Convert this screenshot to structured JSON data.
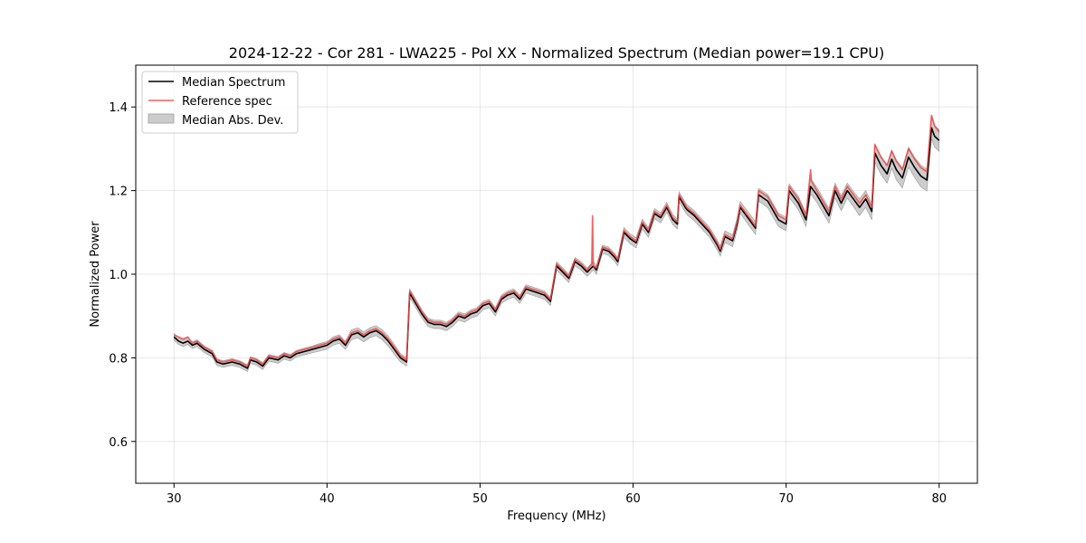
{
  "chart_data": {
    "type": "line",
    "title": "2024-12-22 - Cor 281 - LWA225 - Pol XX - Normalized Spectrum (Median power=19.1 CPU)",
    "xlabel": "Frequency (MHz)",
    "ylabel": "Normalized Power",
    "xlim": [
      27.5,
      82.5
    ],
    "ylim": [
      0.5,
      1.5
    ],
    "xticks": [
      30,
      40,
      50,
      60,
      70,
      80
    ],
    "yticks": [
      0.6,
      0.8,
      1.0,
      1.2,
      1.4
    ],
    "xtick_labels": [
      "30",
      "40",
      "50",
      "60",
      "70",
      "80"
    ],
    "ytick_labels": [
      "0.6",
      "0.8",
      "1.0",
      "1.2",
      "1.4"
    ],
    "grid": true,
    "legend_position": "top-left",
    "legend": [
      "Median Spectrum",
      "Reference spec",
      "Median Abs. Dev."
    ],
    "colors": {
      "median": "#000000",
      "reference": "#ee4444",
      "mad": "#bbbbbb"
    },
    "series": [
      {
        "name": "Median Spectrum",
        "x": [
          30.0,
          30.3,
          30.6,
          30.9,
          31.2,
          31.5,
          32.0,
          32.5,
          32.8,
          33.2,
          33.8,
          34.3,
          34.8,
          35.0,
          35.4,
          35.8,
          36.2,
          36.8,
          37.2,
          37.6,
          38.0,
          38.5,
          39.0,
          39.5,
          40.0,
          40.4,
          40.8,
          41.2,
          41.6,
          42.0,
          42.4,
          42.8,
          43.2,
          43.6,
          44.0,
          44.4,
          44.8,
          45.2,
          45.4,
          45.8,
          46.2,
          46.6,
          47.0,
          47.4,
          47.8,
          48.2,
          48.6,
          49.0,
          49.4,
          49.8,
          50.2,
          50.6,
          51.0,
          51.4,
          51.8,
          52.2,
          52.6,
          53.0,
          53.4,
          53.8,
          54.2,
          54.6,
          55.0,
          55.4,
          55.8,
          56.2,
          56.6,
          57.0,
          57.4,
          57.6,
          58.0,
          58.4,
          58.8,
          59.0,
          59.4,
          59.8,
          60.2,
          60.6,
          61.0,
          61.4,
          61.8,
          62.2,
          62.6,
          62.9,
          63.0,
          63.5,
          64.0,
          64.5,
          65.0,
          65.5,
          65.7,
          66.0,
          66.5,
          66.8,
          67.0,
          67.5,
          68.0,
          68.2,
          68.8,
          69.5,
          70.0,
          70.2,
          70.8,
          71.3,
          71.6,
          72.0,
          72.8,
          73.2,
          73.6,
          74.0,
          74.4,
          74.8,
          75.2,
          75.6,
          75.8,
          76.2,
          76.6,
          76.9,
          77.2,
          77.6,
          78.0,
          78.4,
          78.8,
          79.2,
          79.5,
          79.7,
          80.0
        ],
        "values": [
          0.85,
          0.84,
          0.835,
          0.84,
          0.83,
          0.835,
          0.82,
          0.81,
          0.79,
          0.785,
          0.79,
          0.785,
          0.775,
          0.795,
          0.79,
          0.78,
          0.8,
          0.795,
          0.805,
          0.8,
          0.81,
          0.815,
          0.82,
          0.825,
          0.83,
          0.84,
          0.845,
          0.83,
          0.855,
          0.86,
          0.85,
          0.86,
          0.865,
          0.855,
          0.84,
          0.82,
          0.8,
          0.79,
          0.955,
          0.93,
          0.905,
          0.885,
          0.88,
          0.88,
          0.875,
          0.885,
          0.9,
          0.895,
          0.905,
          0.91,
          0.925,
          0.93,
          0.91,
          0.94,
          0.95,
          0.955,
          0.94,
          0.965,
          0.96,
          0.955,
          0.95,
          0.935,
          1.02,
          1.005,
          0.99,
          1.03,
          1.02,
          1.005,
          1.02,
          1.01,
          1.06,
          1.055,
          1.04,
          1.03,
          1.1,
          1.085,
          1.075,
          1.12,
          1.1,
          1.145,
          1.135,
          1.16,
          1.13,
          1.12,
          1.185,
          1.155,
          1.14,
          1.12,
          1.1,
          1.07,
          1.055,
          1.09,
          1.08,
          1.12,
          1.16,
          1.135,
          1.11,
          1.19,
          1.175,
          1.13,
          1.12,
          1.2,
          1.17,
          1.13,
          1.21,
          1.19,
          1.14,
          1.2,
          1.17,
          1.2,
          1.18,
          1.16,
          1.18,
          1.15,
          1.29,
          1.26,
          1.24,
          1.275,
          1.25,
          1.23,
          1.28,
          1.255,
          1.235,
          1.225,
          1.35,
          1.33,
          1.32
        ]
      },
      {
        "name": "Reference spec",
        "x": [
          30.0,
          30.3,
          30.6,
          30.9,
          31.2,
          31.5,
          32.0,
          32.5,
          32.8,
          33.2,
          33.8,
          34.3,
          34.8,
          35.0,
          35.4,
          35.8,
          36.2,
          36.8,
          37.2,
          37.6,
          38.0,
          38.5,
          39.0,
          39.5,
          40.0,
          40.4,
          40.8,
          41.2,
          41.6,
          42.0,
          42.4,
          42.8,
          43.2,
          43.6,
          44.0,
          44.4,
          44.8,
          45.2,
          45.4,
          45.8,
          46.2,
          46.6,
          47.0,
          47.4,
          47.8,
          48.2,
          48.6,
          49.0,
          49.4,
          49.8,
          50.2,
          50.6,
          51.0,
          51.4,
          51.8,
          52.2,
          52.6,
          53.0,
          53.4,
          53.8,
          54.2,
          54.6,
          55.0,
          55.4,
          55.8,
          56.2,
          56.6,
          57.0,
          57.3,
          57.35,
          57.4,
          57.6,
          58.0,
          58.4,
          58.8,
          59.0,
          59.4,
          59.8,
          60.2,
          60.6,
          61.0,
          61.4,
          61.8,
          62.2,
          62.6,
          62.9,
          63.0,
          63.5,
          64.0,
          64.5,
          65.0,
          65.5,
          65.7,
          66.0,
          66.5,
          66.8,
          67.0,
          67.5,
          68.0,
          68.2,
          68.8,
          69.5,
          70.0,
          70.2,
          70.8,
          71.3,
          71.6,
          71.65,
          71.7,
          72.0,
          72.8,
          73.2,
          73.6,
          74.0,
          74.4,
          74.8,
          75.2,
          75.6,
          75.8,
          76.2,
          76.6,
          76.9,
          77.2,
          77.6,
          78.0,
          78.4,
          78.8,
          79.2,
          79.5,
          79.7,
          80.0
        ],
        "values": [
          0.855,
          0.85,
          0.845,
          0.85,
          0.835,
          0.84,
          0.825,
          0.815,
          0.795,
          0.79,
          0.795,
          0.79,
          0.78,
          0.8,
          0.795,
          0.785,
          0.805,
          0.8,
          0.81,
          0.805,
          0.815,
          0.82,
          0.825,
          0.83,
          0.835,
          0.845,
          0.85,
          0.835,
          0.86,
          0.865,
          0.855,
          0.865,
          0.87,
          0.86,
          0.845,
          0.825,
          0.805,
          0.795,
          0.96,
          0.935,
          0.91,
          0.89,
          0.885,
          0.885,
          0.88,
          0.89,
          0.905,
          0.9,
          0.91,
          0.915,
          0.93,
          0.935,
          0.915,
          0.945,
          0.955,
          0.96,
          0.945,
          0.97,
          0.965,
          0.96,
          0.955,
          0.94,
          1.025,
          1.01,
          0.995,
          1.035,
          1.025,
          1.01,
          1.025,
          1.14,
          1.02,
          1.015,
          1.065,
          1.06,
          1.045,
          1.035,
          1.105,
          1.09,
          1.08,
          1.125,
          1.105,
          1.15,
          1.14,
          1.165,
          1.135,
          1.125,
          1.19,
          1.16,
          1.145,
          1.125,
          1.105,
          1.075,
          1.06,
          1.095,
          1.085,
          1.125,
          1.165,
          1.14,
          1.115,
          1.2,
          1.185,
          1.14,
          1.13,
          1.21,
          1.18,
          1.14,
          1.25,
          1.225,
          1.22,
          1.2,
          1.15,
          1.21,
          1.18,
          1.21,
          1.19,
          1.17,
          1.19,
          1.16,
          1.31,
          1.28,
          1.26,
          1.295,
          1.27,
          1.25,
          1.3,
          1.275,
          1.255,
          1.245,
          1.38,
          1.355,
          1.34
        ]
      }
    ],
    "mad_halfwidth": [
      0.008,
      0.008,
      0.008,
      0.008,
      0.008,
      0.008,
      0.008,
      0.008,
      0.008,
      0.008,
      0.008,
      0.008,
      0.008,
      0.008,
      0.008,
      0.008,
      0.008,
      0.008,
      0.008,
      0.008,
      0.008,
      0.008,
      0.008,
      0.009,
      0.009,
      0.01,
      0.01,
      0.01,
      0.012,
      0.012,
      0.012,
      0.012,
      0.012,
      0.012,
      0.012,
      0.012,
      0.01,
      0.01,
      0.01,
      0.01,
      0.01,
      0.01,
      0.01,
      0.01,
      0.01,
      0.01,
      0.01,
      0.01,
      0.01,
      0.01,
      0.01,
      0.01,
      0.01,
      0.01,
      0.01,
      0.01,
      0.01,
      0.01,
      0.01,
      0.01,
      0.01,
      0.01,
      0.01,
      0.01,
      0.01,
      0.01,
      0.01,
      0.01,
      0.01,
      0.01,
      0.01,
      0.01,
      0.01,
      0.01,
      0.012,
      0.012,
      0.012,
      0.012,
      0.012,
      0.012,
      0.012,
      0.012,
      0.012,
      0.012,
      0.012,
      0.012,
      0.012,
      0.012,
      0.012,
      0.012,
      0.012,
      0.014,
      0.014,
      0.014,
      0.014,
      0.015,
      0.015,
      0.015,
      0.016,
      0.016,
      0.016,
      0.016,
      0.016,
      0.016,
      0.018,
      0.018,
      0.018,
      0.018,
      0.018,
      0.018,
      0.018,
      0.02,
      0.02,
      0.02,
      0.022,
      0.022,
      0.022,
      0.022,
      0.024,
      0.024,
      0.024,
      0.024,
      0.026,
      0.026,
      0.026
    ]
  }
}
